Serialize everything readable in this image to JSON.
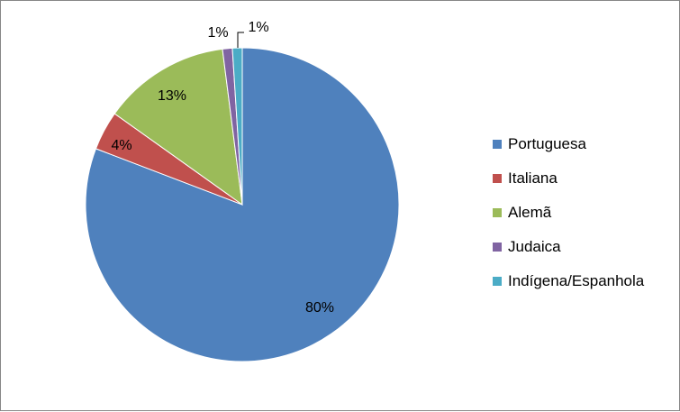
{
  "chart_data": {
    "type": "pie",
    "title": "",
    "categories": [
      "Portuguesa",
      "Italiana",
      "Alemã",
      "Judaica",
      "Indígena/Espanhola"
    ],
    "values": [
      80,
      4,
      13,
      1,
      1
    ],
    "data_labels": [
      "80%",
      "4%",
      "13%",
      "1%",
      "1%"
    ],
    "colors": [
      "#4F81BD",
      "#C0504D",
      "#9BBB59",
      "#8064A2",
      "#4BACC6"
    ],
    "legend": "right",
    "start_angle": "12 o'clock",
    "direction": "clockwise"
  }
}
